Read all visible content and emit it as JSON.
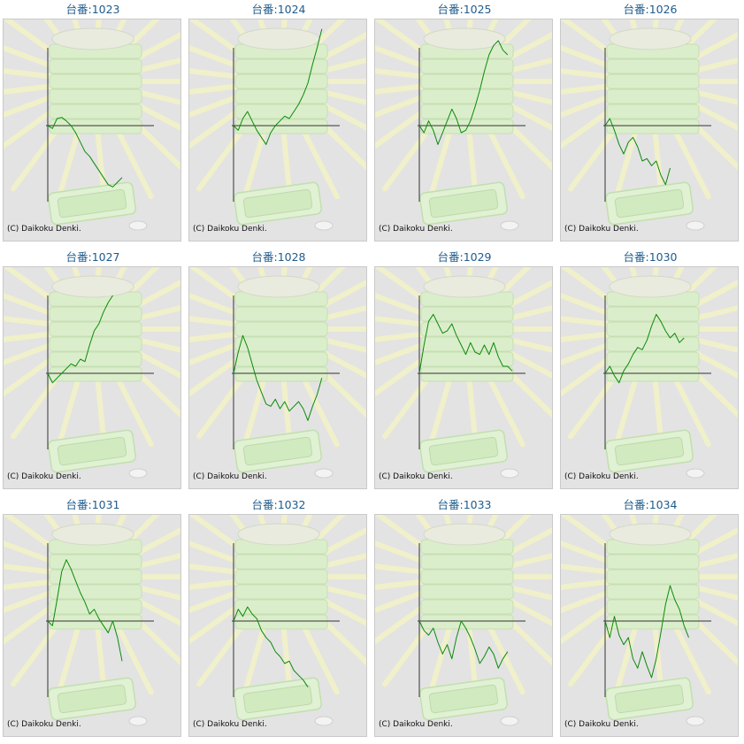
{
  "chart_data": [
    {
      "type": "line",
      "title": "台番:1023",
      "credit": "(C) Daikoku Denki.",
      "grid": false,
      "line_color": "#0a8a0a",
      "x": [
        0,
        5,
        10,
        15,
        20,
        25,
        30,
        35,
        40,
        45,
        50,
        55,
        60,
        65,
        70,
        75,
        80
      ],
      "y": [
        0,
        -120,
        300,
        350,
        200,
        0,
        -300,
        -700,
        -1100,
        -1300,
        -1600,
        -1900,
        -2200,
        -2500,
        -2600,
        -2400,
        -2200
      ]
    },
    {
      "type": "line",
      "title": "台番:1024",
      "credit": "(C) Daikoku Denki.",
      "grid": false,
      "line_color": "#0a8a0a",
      "x": [
        0,
        5,
        10,
        15,
        20,
        25,
        30,
        35,
        40,
        45,
        50,
        55,
        60,
        65,
        70,
        75,
        80,
        85,
        90,
        95
      ],
      "y": [
        0,
        -200,
        300,
        600,
        200,
        -200,
        -500,
        -800,
        -300,
        0,
        200,
        400,
        300,
        600,
        900,
        1300,
        1800,
        2600,
        3300,
        4100
      ]
    },
    {
      "type": "line",
      "title": "台番:1025",
      "credit": "(C) Daikoku Denki.",
      "grid": false,
      "line_color": "#0a8a0a",
      "x": [
        0,
        5,
        10,
        15,
        20,
        25,
        30,
        35,
        40,
        45,
        50,
        55,
        60,
        65,
        70,
        75,
        80,
        85,
        90,
        95
      ],
      "y": [
        0,
        -300,
        200,
        -200,
        -800,
        -300,
        200,
        700,
        300,
        -300,
        -200,
        200,
        800,
        1500,
        2300,
        3000,
        3400,
        3600,
        3200,
        3000
      ]
    },
    {
      "type": "line",
      "title": "台番:1026",
      "credit": "(C) Daikoku Denki.",
      "grid": false,
      "line_color": "#0a8a0a",
      "x": [
        0,
        5,
        10,
        15,
        20,
        25,
        30,
        35,
        40,
        45,
        50,
        55,
        60,
        65,
        70
      ],
      "y": [
        0,
        300,
        -200,
        -800,
        -1200,
        -700,
        -500,
        -900,
        -1500,
        -1400,
        -1700,
        -1500,
        -2100,
        -2500,
        -1800
      ]
    },
    {
      "type": "line",
      "title": "台番:1027",
      "credit": "(C) Daikoku Denki.",
      "grid": false,
      "line_color": "#0a8a0a",
      "x": [
        0,
        5,
        10,
        15,
        20,
        25,
        30,
        35,
        40,
        45,
        50,
        55,
        60,
        65,
        70
      ],
      "y": [
        0,
        -400,
        -200,
        0,
        200,
        400,
        300,
        600,
        500,
        1200,
        1800,
        2100,
        2600,
        3000,
        3300
      ]
    },
    {
      "type": "line",
      "title": "台番:1028",
      "credit": "(C) Daikoku Denki.",
      "grid": false,
      "line_color": "#0a8a0a",
      "x": [
        0,
        5,
        10,
        15,
        20,
        25,
        30,
        35,
        40,
        45,
        50,
        55,
        60,
        65,
        70,
        75,
        80,
        85,
        90,
        95
      ],
      "y": [
        0,
        900,
        1600,
        1100,
        400,
        -300,
        -800,
        -1300,
        -1400,
        -1100,
        -1500,
        -1200,
        -1600,
        -1400,
        -1200,
        -1500,
        -2000,
        -1400,
        -900,
        -200
      ]
    },
    {
      "type": "line",
      "title": "台番:1029",
      "credit": "(C) Daikoku Denki.",
      "grid": false,
      "line_color": "#0a8a0a",
      "x": [
        0,
        5,
        10,
        15,
        20,
        25,
        30,
        35,
        40,
        45,
        50,
        55,
        60,
        65,
        70,
        75,
        80,
        85,
        90,
        95,
        100
      ],
      "y": [
        0,
        1200,
        2200,
        2500,
        2100,
        1700,
        1800,
        2100,
        1600,
        1200,
        800,
        1300,
        900,
        800,
        1200,
        800,
        1300,
        700,
        300,
        300,
        100
      ]
    },
    {
      "type": "line",
      "title": "台番:1030",
      "credit": "(C) Daikoku Denki.",
      "grid": false,
      "line_color": "#0a8a0a",
      "x": [
        0,
        5,
        10,
        15,
        20,
        25,
        30,
        35,
        40,
        45,
        50,
        55,
        60,
        65,
        70,
        75,
        80,
        85
      ],
      "y": [
        0,
        300,
        -100,
        -400,
        100,
        400,
        800,
        1100,
        1000,
        1400,
        2000,
        2500,
        2200,
        1800,
        1500,
        1700,
        1300,
        1500
      ]
    },
    {
      "type": "line",
      "title": "台番:1031",
      "credit": "(C) Daikoku Denki.",
      "grid": false,
      "line_color": "#0a8a0a",
      "x": [
        0,
        5,
        10,
        15,
        20,
        25,
        30,
        35,
        40,
        45,
        50,
        55,
        60,
        65,
        70,
        75,
        80
      ],
      "y": [
        0,
        -200,
        900,
        2100,
        2600,
        2200,
        1700,
        1200,
        800,
        300,
        500,
        100,
        -200,
        -500,
        0,
        -700,
        -1700
      ]
    },
    {
      "type": "line",
      "title": "台番:1032",
      "credit": "(C) Daikoku Denki.",
      "grid": false,
      "line_color": "#0a8a0a",
      "x": [
        0,
        5,
        10,
        15,
        20,
        25,
        30,
        35,
        40,
        45,
        50,
        55,
        60,
        65,
        70,
        75,
        80
      ],
      "y": [
        0,
        500,
        200,
        600,
        300,
        100,
        -400,
        -700,
        -900,
        -1300,
        -1500,
        -1800,
        -1700,
        -2100,
        -2300,
        -2500,
        -2800
      ]
    },
    {
      "type": "line",
      "title": "台番:1033",
      "credit": "(C) Daikoku Denki.",
      "grid": false,
      "line_color": "#0a8a0a",
      "x": [
        0,
        5,
        10,
        15,
        20,
        25,
        30,
        35,
        40,
        45,
        50,
        55,
        60,
        65,
        70,
        75,
        80,
        85,
        90,
        95
      ],
      "y": [
        0,
        -400,
        -600,
        -300,
        -900,
        -1400,
        -1000,
        -1600,
        -700,
        0,
        -300,
        -700,
        -1200,
        -1800,
        -1500,
        -1100,
        -1400,
        -2000,
        -1600,
        -1300
      ]
    },
    {
      "type": "line",
      "title": "台番:1034",
      "credit": "(C) Daikoku Denki.",
      "grid": false,
      "line_color": "#0a8a0a",
      "x": [
        0,
        5,
        10,
        15,
        20,
        25,
        30,
        35,
        40,
        45,
        50,
        55,
        60,
        65,
        70,
        75,
        80,
        85,
        90
      ],
      "y": [
        0,
        -700,
        200,
        -600,
        -1000,
        -700,
        -1600,
        -2000,
        -1300,
        -1900,
        -2400,
        -1600,
        -500,
        700,
        1500,
        900,
        500,
        -200,
        -700
      ]
    }
  ]
}
